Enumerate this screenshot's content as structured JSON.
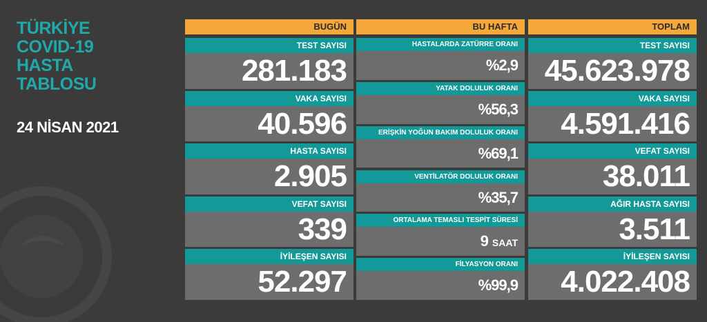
{
  "title": [
    "TÜRKİYE",
    "COVID-19",
    "HASTA",
    "TABLOSU"
  ],
  "date": "24 NİSAN 2021",
  "columns": [
    {
      "header": "BUGÜN",
      "items": [
        {
          "label": "TEST SAYISI",
          "value": "281.183"
        },
        {
          "label": "VAKA SAYISI",
          "value": "40.596"
        },
        {
          "label": "HASTA SAYISI",
          "value": "2.905"
        },
        {
          "label": "VEFAT SAYISI",
          "value": "339"
        },
        {
          "label": "İYİLEŞEN SAYISI",
          "value": "52.297"
        }
      ]
    },
    {
      "header": "BU HAFTA",
      "items": [
        {
          "label": "HASTALARDA ZATÜRRE ORANI",
          "value": "%2,9"
        },
        {
          "label": "YATAK DOLULUK ORANI",
          "value": "%56,3"
        },
        {
          "label": "ERİŞKİN YOĞUN BAKIM DOLULUK ORANI",
          "value": "%69,1"
        },
        {
          "label": "VENTİLATÖR DOLULUK ORANI",
          "value": "%35,7"
        },
        {
          "label": "ORTALAMA TEMASLI TESPİT SÜRESİ",
          "value": "9",
          "unit": "SAAT"
        },
        {
          "label": "FİLYASYON ORANI",
          "value": "%99,9"
        }
      ]
    },
    {
      "header": "TOPLAM",
      "items": [
        {
          "label": "TEST SAYISI",
          "value": "45.623.978"
        },
        {
          "label": "VAKA SAYISI",
          "value": "4.591.416"
        },
        {
          "label": "VEFAT SAYISI",
          "value": "38.011"
        },
        {
          "label": "AĞIR HASTA SAYISI",
          "value": "3.511"
        },
        {
          "label": "İYİLEŞEN SAYISI",
          "value": "4.022.408"
        }
      ]
    }
  ]
}
